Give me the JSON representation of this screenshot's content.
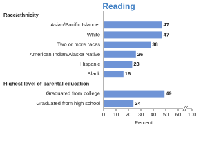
{
  "chart_data": {
    "type": "bar",
    "orientation": "horizontal",
    "title": "Reading",
    "groups": [
      {
        "name": "Race/ethnicity",
        "categories": [
          "Asian/Pacific Islander",
          "White",
          "Two or more races",
          "American Indian/Alaska Native",
          "Hispanic",
          "Black"
        ],
        "values": [
          47,
          47,
          38,
          26,
          23,
          16
        ]
      },
      {
        "name": "Highest level of parental education",
        "categories": [
          "Graduated from college",
          "Graduated from high school"
        ],
        "values": [
          49,
          24
        ]
      }
    ],
    "color": "#6f94d6",
    "xlabel": "Percent",
    "xlim": [
      0,
      100
    ],
    "xticks": [
      0,
      10,
      20,
      30,
      40,
      50,
      60,
      100
    ],
    "axis_break": [
      60,
      100
    ]
  }
}
